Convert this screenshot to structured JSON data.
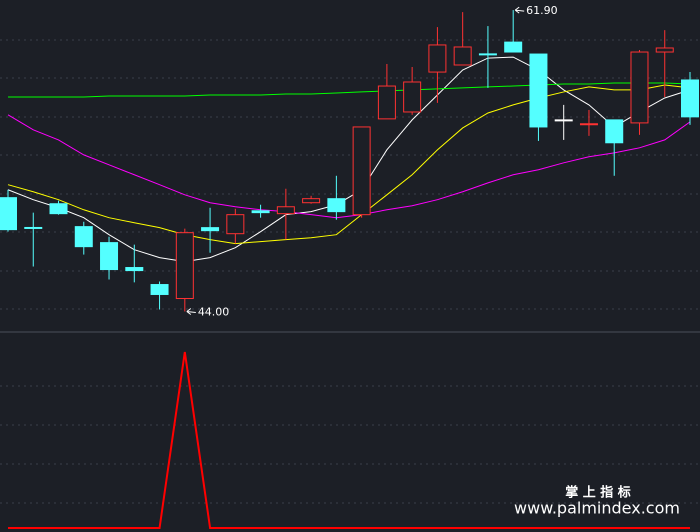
{
  "chart_data": [
    {
      "type": "candlestick",
      "open": [
        50.76,
        48.99,
        50.4,
        49.04,
        48.09,
        46.61,
        45.6,
        44.77,
        48.98,
        48.62,
        49.98,
        49.81,
        50.46,
        50.7,
        49.75,
        55.44,
        55.85,
        58.22,
        58.64,
        59.3,
        60.0,
        59.29,
        55.38,
        55.14,
        55.38,
        55.2,
        59.41,
        57.75
      ],
      "high": [
        51.23,
        49.87,
        50.58,
        49.33,
        48.44,
        47.97,
        45.78,
        48.92,
        50.16,
        50.1,
        50.34,
        51.29,
        50.87,
        52.06,
        54.96,
        58.7,
        58.52,
        60.89,
        61.78,
        60.95,
        61.9,
        59.29,
        56.27,
        55.97,
        55.38,
        59.53,
        60.71,
        58.22
      ],
      "low": [
        48.74,
        46.67,
        49.75,
        47.38,
        45.9,
        45.73,
        44.12,
        44.0,
        47.49,
        48.03,
        49.57,
        48.27,
        50.4,
        49.45,
        49.57,
        55.44,
        55.68,
        56.39,
        58.64,
        57.28,
        59.41,
        54.13,
        54.19,
        54.43,
        52.06,
        54.49,
        56.74,
        55.08
      ],
      "close": [
        48.86,
        48.98,
        49.81,
        47.85,
        46.49,
        46.43,
        45.01,
        48.68,
        48.8,
        49.75,
        49.87,
        50.22,
        50.7,
        49.93,
        54.96,
        57.39,
        57.63,
        59.83,
        59.71,
        59.29,
        59.41,
        54.96,
        55.38,
        55.15,
        54.02,
        59.41,
        59.65,
        55.56
      ],
      "up_color": "#ff3232",
      "down_color": "#54ffff",
      "flat_color": "#ffffff",
      "lines": [
        {
          "color": "#ffffff",
          "values": [
            51.23,
            50.64,
            50.16,
            49.57,
            48.56,
            47.67,
            47.2,
            46.96,
            47.2,
            47.79,
            48.74,
            49.75,
            49.93,
            50.34,
            51.23,
            53.6,
            55.38,
            56.86,
            58.34,
            59.05,
            59.11,
            58.34,
            57.16,
            56.27,
            54.96,
            55.85,
            56.68,
            57.16
          ]
        },
        {
          "color": "#ffff00",
          "values": [
            51.53,
            51.11,
            50.64,
            50.04,
            49.57,
            49.27,
            48.98,
            48.56,
            48.27,
            48.03,
            48.15,
            48.27,
            48.38,
            48.56,
            49.75,
            50.93,
            52.12,
            53.6,
            54.9,
            55.79,
            56.27,
            56.68,
            57.04,
            57.34,
            57.16,
            57.16,
            57.45,
            57.28
          ]
        },
        {
          "color": "#ff00ff",
          "values": [
            55.68,
            54.79,
            54.19,
            53.3,
            52.71,
            52.12,
            51.53,
            50.93,
            50.46,
            50.22,
            50.04,
            49.93,
            49.75,
            49.57,
            49.75,
            50.04,
            50.28,
            50.64,
            51.11,
            51.64,
            52.12,
            52.42,
            52.83,
            53.19,
            53.42,
            53.72,
            54.19,
            55.26
          ]
        },
        {
          "color": "#00ff00",
          "values": [
            56.74,
            56.74,
            56.74,
            56.74,
            56.8,
            56.8,
            56.8,
            56.8,
            56.86,
            56.86,
            56.86,
            56.92,
            56.92,
            56.98,
            57.04,
            57.1,
            57.16,
            57.22,
            57.28,
            57.34,
            57.39,
            57.45,
            57.51,
            57.51,
            57.57,
            57.57,
            57.57,
            57.51
          ]
        }
      ],
      "annotations": [
        {
          "label": "61.90",
          "value": 61.9
        },
        {
          "label": "44.00",
          "value": 44
        }
      ],
      "ylim": [
        42.9,
        62.5
      ]
    },
    {
      "type": "line",
      "color": "#ff0000",
      "values": [
        0,
        0,
        0,
        0,
        0,
        0,
        0,
        1,
        0,
        0,
        0,
        0,
        0,
        0,
        0,
        0,
        0,
        0,
        0,
        0,
        0,
        0,
        0,
        0,
        0,
        0,
        0,
        0
      ],
      "ylim": [
        0,
        1
      ]
    }
  ],
  "watermark": {
    "title": "掌 上 指 标",
    "url": "www.palmindex.com"
  }
}
